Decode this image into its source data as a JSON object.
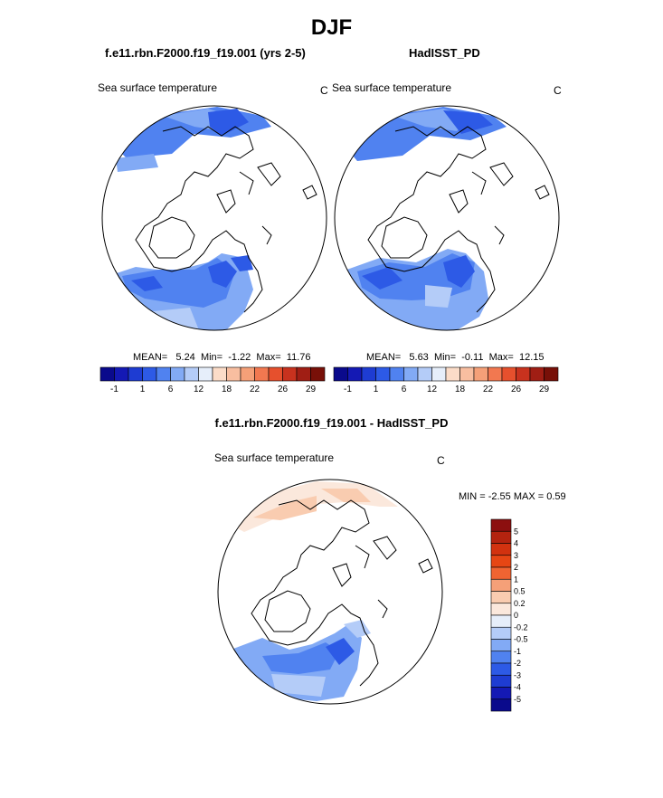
{
  "title": "DJF",
  "panels": [
    {
      "header": "f.e11.rbn.F2000.f19_f19.001 (yrs 2-5)",
      "variable": "Sea surface temperature",
      "units": "C",
      "stats": {
        "mean_label": "MEAN=",
        "mean": "5.24",
        "min_label": "Min=",
        "min": "-1.22",
        "max_label": "Max=",
        "max": "11.76"
      }
    },
    {
      "header": "HadISST_PD",
      "variable": "Sea surface temperature",
      "units": "C",
      "stats": {
        "mean_label": "MEAN=",
        "mean": "5.63",
        "min_label": "Min=",
        "min": "-0.11",
        "max_label": "Max=",
        "max": "12.15"
      }
    }
  ],
  "diff_panel": {
    "header": "f.e11.rbn.F2000.f19_f19.001 - HadISST_PD",
    "variable": "Sea surface temperature",
    "units": "C",
    "minmax": "MIN =  -2.55 MAX =   0.59"
  },
  "chart_data": [
    {
      "type": "heatmap",
      "projection": "north polar stereographic",
      "title": "Sea surface temperature",
      "units": "C",
      "colorbar": {
        "orientation": "horizontal",
        "labels": [
          "-1",
          "1",
          "6",
          "12",
          "18",
          "22",
          "26",
          "29"
        ],
        "colors": [
          "#0a0a8c",
          "#1419b4",
          "#1e3cd2",
          "#2d5ae6",
          "#5082f0",
          "#82aaf5",
          "#b4ccf8",
          "#e6eefa",
          "#fbdcc8",
          "#f8bea0",
          "#f5a078",
          "#f27850",
          "#e6502d",
          "#c8321e",
          "#a01e14",
          "#781008"
        ]
      },
      "stats": {
        "mean": 5.24,
        "min": -1.22,
        "max": 11.76
      }
    },
    {
      "type": "heatmap",
      "projection": "north polar stereographic",
      "title": "Sea surface temperature",
      "units": "C",
      "colorbar": {
        "orientation": "horizontal",
        "labels": [
          "-1",
          "1",
          "6",
          "12",
          "18",
          "22",
          "26",
          "29"
        ],
        "colors": [
          "#0a0a8c",
          "#1419b4",
          "#1e3cd2",
          "#2d5ae6",
          "#5082f0",
          "#82aaf5",
          "#b4ccf8",
          "#e6eefa",
          "#fbdcc8",
          "#f8bea0",
          "#f5a078",
          "#f27850",
          "#e6502d",
          "#c8321e",
          "#a01e14",
          "#781008"
        ]
      },
      "stats": {
        "mean": 5.63,
        "min": -0.11,
        "max": 12.15
      }
    },
    {
      "type": "heatmap",
      "projection": "north polar stereographic",
      "title": "Sea surface temperature",
      "units": "C",
      "colorbar": {
        "orientation": "vertical",
        "labels": [
          "5",
          "4",
          "3",
          "2",
          "1",
          "0.5",
          "0.2",
          "0",
          "-0.2",
          "-0.5",
          "-1",
          "-2",
          "-3",
          "-4",
          "-5"
        ],
        "colors": [
          "#8c0f0f",
          "#b4230f",
          "#d2320f",
          "#e64614",
          "#f06432",
          "#f5a078",
          "#f9ccb0",
          "#fbe8dc",
          "#e6eefa",
          "#b4ccf8",
          "#82aaf5",
          "#5082f0",
          "#2d5ae6",
          "#1e3cd2",
          "#1419b4",
          "#0a0a8c"
        ]
      },
      "stats": {
        "min": -2.55,
        "max": 0.59
      }
    }
  ]
}
